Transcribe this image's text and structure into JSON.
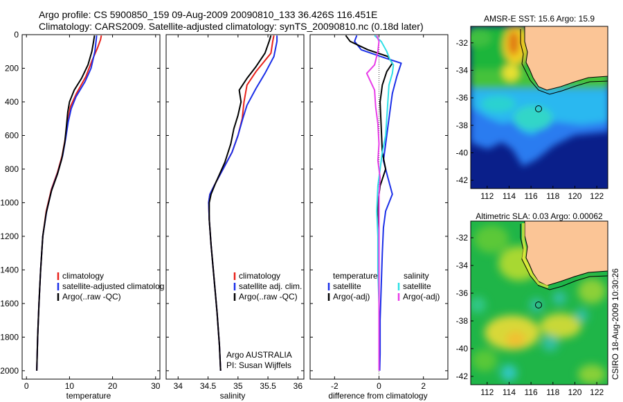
{
  "header": {
    "line1": "Argo profile: CS 5900850_159 09-Aug-2009 20090810_133 36.426S 116.451E",
    "line2": "Climatology: CARS2009. Satellite-adjusted climatology: synTS_20090810.nc (0.18d later)"
  },
  "credit": "CSIRO 18-Aug-2009 10:30:26",
  "colors": {
    "climatology": "#e8201a",
    "satellite": "#1a2ee8",
    "argo": "#000000",
    "cyan": "#2de0e6",
    "magenta": "#e83ce8",
    "land": "#fbc596"
  },
  "chart_data": [
    {
      "type": "line",
      "xlabel": "temperature",
      "ylabel": "",
      "xlim": [
        -1,
        31
      ],
      "ylim": [
        2050,
        0
      ],
      "y_inverted": true,
      "xticks": [
        "0",
        "10",
        "20",
        "30"
      ],
      "yticks": [
        "0",
        "200",
        "400",
        "600",
        "800",
        "1000",
        "1200",
        "1400",
        "1600",
        "1800",
        "2000"
      ],
      "legend": [
        "climatology",
        "satellite-adjusted climatolog",
        "Argo(..raw -QC)"
      ],
      "series": [
        {
          "name": "climatology",
          "color": "#e8201a",
          "points": [
            [
              17.4,
              5
            ],
            [
              17.2,
              30
            ],
            [
              16.5,
              80
            ],
            [
              15.3,
              150
            ],
            [
              13.8,
              250
            ],
            [
              11.6,
              350
            ],
            [
              10.2,
              430
            ],
            [
              9.6,
              520
            ],
            [
              9.0,
              620
            ],
            [
              8.3,
              720
            ],
            [
              7.2,
              820
            ],
            [
              5.8,
              920
            ],
            [
              4.6,
              1050
            ],
            [
              3.8,
              1200
            ],
            [
              3.3,
              1400
            ],
            [
              2.9,
              1600
            ],
            [
              2.6,
              1800
            ],
            [
              2.4,
              2000
            ]
          ]
        },
        {
          "name": "satellite-adjusted climatology",
          "color": "#1a2ee8",
          "points": [
            [
              16.3,
              5
            ],
            [
              16.2,
              30
            ],
            [
              15.9,
              100
            ],
            [
              15.0,
              200
            ],
            [
              13.6,
              280
            ],
            [
              11.5,
              370
            ],
            [
              10.4,
              440
            ],
            [
              9.7,
              520
            ],
            [
              9.1,
              620
            ],
            [
              8.4,
              720
            ],
            [
              7.3,
              820
            ],
            [
              5.9,
              920
            ],
            [
              4.7,
              1050
            ],
            [
              3.8,
              1200
            ],
            [
              3.3,
              1400
            ],
            [
              2.9,
              1600
            ],
            [
              2.6,
              1800
            ],
            [
              2.4,
              2000
            ]
          ]
        },
        {
          "name": "Argo(..raw -QC)",
          "color": "#000000",
          "points": [
            [
              15.8,
              5
            ],
            [
              15.6,
              40
            ],
            [
              15.2,
              100
            ],
            [
              14.3,
              180
            ],
            [
              12.8,
              260
            ],
            [
              11.1,
              330
            ],
            [
              10.0,
              400
            ],
            [
              9.6,
              460
            ],
            [
              9.3,
              540
            ],
            [
              8.9,
              640
            ],
            [
              8.2,
              740
            ],
            [
              7.2,
              830
            ],
            [
              5.8,
              930
            ],
            [
              4.6,
              1060
            ],
            [
              3.8,
              1200
            ],
            [
              3.3,
              1400
            ],
            [
              2.9,
              1600
            ],
            [
              2.6,
              1800
            ],
            [
              2.4,
              2000
            ]
          ]
        }
      ]
    },
    {
      "type": "line",
      "xlabel": "salinity",
      "ylabel": "",
      "xlim": [
        33.8,
        36.1
      ],
      "ylim": [
        2050,
        0
      ],
      "y_inverted": true,
      "xticks": [
        "34",
        "34.5",
        "35",
        "35.5",
        "36"
      ],
      "legend": [
        "climatology",
        "satellite adj. clim.",
        "Argo(..raw -QC)"
      ],
      "annotation": [
        "Argo AUSTRALIA",
        "PI: Susan Wijffels"
      ],
      "series": [
        {
          "name": "climatology",
          "color": "#e8201a",
          "points": [
            [
              35.6,
              5
            ],
            [
              35.58,
              40
            ],
            [
              35.55,
              110
            ],
            [
              35.3,
              220
            ],
            [
              35.15,
              300
            ],
            [
              35.1,
              400
            ],
            [
              35.07,
              500
            ],
            [
              35.0,
              600
            ],
            [
              34.9,
              700
            ],
            [
              34.75,
              800
            ],
            [
              34.6,
              900
            ],
            [
              34.53,
              950
            ],
            [
              34.51,
              1000
            ],
            [
              34.52,
              1100
            ],
            [
              34.55,
              1250
            ],
            [
              34.6,
              1450
            ],
            [
              34.65,
              1650
            ],
            [
              34.69,
              1850
            ],
            [
              34.71,
              2000
            ]
          ]
        },
        {
          "name": "satellite adj. clim.",
          "color": "#1a2ee8",
          "points": [
            [
              35.65,
              5
            ],
            [
              35.65,
              40
            ],
            [
              35.6,
              130
            ],
            [
              35.45,
              230
            ],
            [
              35.3,
              320
            ],
            [
              35.15,
              420
            ],
            [
              35.08,
              500
            ],
            [
              35.0,
              600
            ],
            [
              34.9,
              700
            ],
            [
              34.75,
              800
            ],
            [
              34.6,
              900
            ],
            [
              34.53,
              950
            ],
            [
              34.51,
              1000
            ],
            [
              34.52,
              1100
            ],
            [
              34.55,
              1250
            ],
            [
              34.6,
              1450
            ],
            [
              34.65,
              1650
            ],
            [
              34.69,
              1850
            ],
            [
              34.71,
              2000
            ]
          ]
        },
        {
          "name": "Argo(..raw -QC)",
          "color": "#000000",
          "points": [
            [
              35.55,
              5
            ],
            [
              35.52,
              40
            ],
            [
              35.45,
              110
            ],
            [
              35.3,
              190
            ],
            [
              35.15,
              260
            ],
            [
              35.02,
              330
            ],
            [
              35.05,
              400
            ],
            [
              35.0,
              480
            ],
            [
              34.93,
              560
            ],
            [
              34.88,
              650
            ],
            [
              34.78,
              760
            ],
            [
              34.63,
              880
            ],
            [
              34.55,
              950
            ],
            [
              34.52,
              1000
            ],
            [
              34.52,
              1100
            ],
            [
              34.55,
              1250
            ],
            [
              34.6,
              1450
            ],
            [
              34.65,
              1650
            ],
            [
              34.69,
              1850
            ],
            [
              34.71,
              2000
            ]
          ]
        }
      ]
    },
    {
      "type": "line",
      "xlabel": "difference from climatology",
      "ylabel": "",
      "xlim": [
        -3.1,
        3.1
      ],
      "ylim": [
        2050,
        0
      ],
      "y_inverted": true,
      "xticks": [
        "-2",
        "0",
        "2"
      ],
      "legend_titles": [
        "temperature",
        "salinity"
      ],
      "legend": [
        "satellite",
        "Argo(-adj)",
        "satellite",
        "Argo(-adj)"
      ],
      "series": [
        {
          "name": "satellite",
          "group": "temperature",
          "color": "#1a2ee8",
          "points": [
            [
              -1.0,
              5
            ],
            [
              -1.1,
              40
            ],
            [
              -0.8,
              90
            ],
            [
              0.3,
              140
            ],
            [
              1.0,
              170
            ],
            [
              0.8,
              250
            ],
            [
              0.6,
              350
            ],
            [
              0.5,
              450
            ],
            [
              0.4,
              550
            ],
            [
              0.3,
              650
            ],
            [
              0.2,
              750
            ],
            [
              0.4,
              850
            ],
            [
              0.6,
              950
            ],
            [
              0.3,
              1050
            ],
            [
              0.2,
              1150
            ],
            [
              0.15,
              1300
            ],
            [
              0.1,
              1500
            ],
            [
              0.05,
              1700
            ],
            [
              0.05,
              1900
            ],
            [
              0.03,
              2000
            ]
          ]
        },
        {
          "name": "Argo(-adj)",
          "group": "temperature",
          "color": "#000000",
          "points": [
            [
              -1.5,
              5
            ],
            [
              -1.3,
              40
            ],
            [
              -0.5,
              90
            ],
            [
              0.4,
              130
            ],
            [
              0.6,
              170
            ],
            [
              0.35,
              220
            ],
            [
              0.15,
              300
            ],
            [
              0.05,
              400
            ],
            [
              0.1,
              550
            ],
            [
              0.15,
              700
            ],
            [
              0.3,
              800
            ],
            [
              0.05,
              900
            ],
            [
              -0.05,
              1000
            ],
            [
              0.0,
              1200
            ],
            [
              0.0,
              1400
            ],
            [
              0.0,
              1600
            ],
            [
              0.0,
              1800
            ],
            [
              0.0,
              2000
            ]
          ]
        },
        {
          "name": "satellite",
          "group": "salinity",
          "color": "#2de0e6",
          "points": [
            [
              -0.2,
              5
            ],
            [
              0.1,
              40
            ],
            [
              0.35,
              100
            ],
            [
              0.5,
              150
            ],
            [
              0.65,
              180
            ],
            [
              0.6,
              230
            ],
            [
              0.45,
              300
            ],
            [
              0.4,
              400
            ],
            [
              0.35,
              500
            ],
            [
              0.3,
              600
            ],
            [
              0.15,
              700
            ],
            [
              0.05,
              800
            ],
            [
              -0.05,
              900
            ],
            [
              -0.1,
              1050
            ],
            [
              -0.05,
              1200
            ],
            [
              -0.05,
              1400
            ],
            [
              0.0,
              1600
            ],
            [
              0.0,
              1800
            ],
            [
              0.0,
              2000
            ]
          ]
        },
        {
          "name": "Argo(-adj)",
          "group": "salinity",
          "color": "#e83ce8",
          "points": [
            [
              -0.1,
              5
            ],
            [
              0.0,
              40
            ],
            [
              -0.05,
              100
            ],
            [
              -0.2,
              180
            ],
            [
              -0.55,
              230
            ],
            [
              -0.2,
              330
            ],
            [
              -0.15,
              430
            ],
            [
              -0.05,
              530
            ],
            [
              0.0,
              650
            ],
            [
              -0.05,
              750
            ],
            [
              0.05,
              850
            ],
            [
              0.0,
              950
            ],
            [
              0.0,
              1100
            ],
            [
              0.0,
              1300
            ],
            [
              0.0,
              1500
            ],
            [
              0.0,
              1700
            ],
            [
              0.0,
              2000
            ]
          ]
        }
      ]
    },
    {
      "type": "heatmap",
      "title": "AMSR-E SST: 15.6 Argo: 15.9",
      "xlim": [
        110.5,
        123
      ],
      "ylim": [
        -42.6,
        -30.8
      ],
      "xticks": [
        "112",
        "114",
        "116",
        "118",
        "120",
        "122"
      ],
      "yticks": [
        "-32",
        "-34",
        "-36",
        "-38",
        "-40",
        "-42"
      ],
      "marker": {
        "lon": 116.451,
        "lat": -36.426
      }
    },
    {
      "type": "heatmap",
      "title": "Altimetric SLA: 0.03 Argo: 0.00062",
      "xlim": [
        110.5,
        123
      ],
      "ylim": [
        -42.6,
        -30.8
      ],
      "xticks": [
        "112",
        "114",
        "116",
        "118",
        "120",
        "122"
      ],
      "yticks": [
        "-32",
        "-34",
        "-36",
        "-38",
        "-40",
        "-42"
      ],
      "marker": {
        "lon": 116.451,
        "lat": -36.426
      }
    }
  ]
}
